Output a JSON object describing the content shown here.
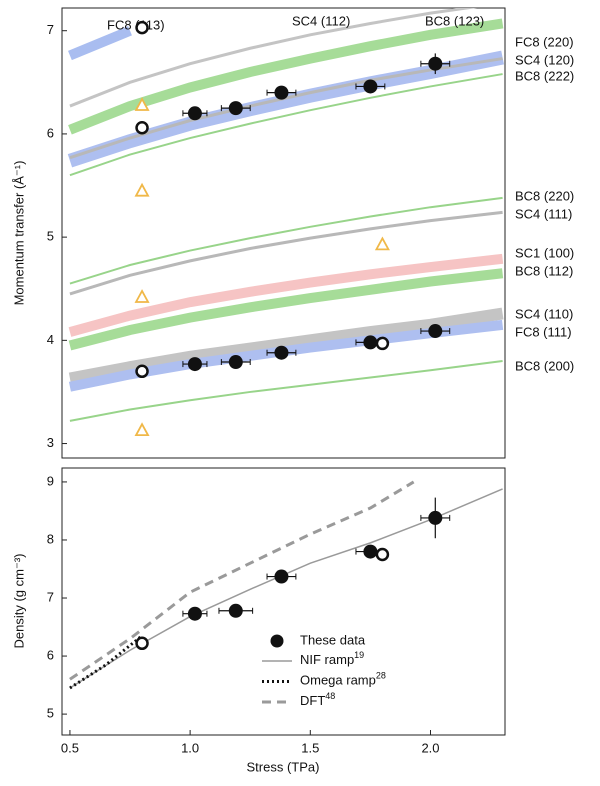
{
  "chart_data": [
    {
      "type": "line",
      "ylabel": "Momentum transfer (Å⁻¹)",
      "xlim": [
        0.467,
        2.31
      ],
      "ylim": [
        2.86,
        7.22
      ],
      "yticks": [
        3,
        4,
        5,
        6,
        7
      ],
      "x": [
        0.5,
        0.75,
        1.0,
        1.25,
        1.5,
        1.75,
        2.0,
        2.3
      ],
      "series": [
        {
          "name": "FC8 (113)",
          "color": "#a9bdf0",
          "values": [
            6.76,
            7.0,
            null,
            null,
            null,
            null,
            null,
            null
          ]
        },
        {
          "name": "SC4 (112)",
          "color": "#c4c4c4",
          "values": [
            6.27,
            6.5,
            6.68,
            6.83,
            6.96,
            7.07,
            7.17,
            7.27
          ]
        },
        {
          "name": "BC8 (123)",
          "color": "#a6dc98",
          "values": [
            6.04,
            6.27,
            6.45,
            6.6,
            6.73,
            6.85,
            6.96,
            7.07
          ]
        },
        {
          "name": "FC8 (220)",
          "color": "#aebff0",
          "values": [
            5.74,
            5.93,
            6.1,
            6.24,
            6.37,
            6.49,
            6.6,
            6.74
          ]
        },
        {
          "name": "SC4 (120)",
          "color": "#b8b8b8",
          "values": [
            5.77,
            5.96,
            6.13,
            6.27,
            6.4,
            6.52,
            6.62,
            6.73
          ]
        },
        {
          "name": "BC8 (222)",
          "color": "#98d48a",
          "values": [
            5.6,
            5.8,
            5.96,
            6.1,
            6.23,
            6.35,
            6.46,
            6.58
          ]
        },
        {
          "name": "BC8 (220)",
          "color": "#98d48a",
          "values": [
            4.55,
            4.73,
            4.87,
            4.99,
            5.1,
            5.2,
            5.29,
            5.38
          ]
        },
        {
          "name": "SC4 (111)",
          "color": "#b8b8b8",
          "values": [
            4.45,
            4.63,
            4.77,
            4.89,
            4.99,
            5.08,
            5.16,
            5.24
          ]
        },
        {
          "name": "SC1 (100)",
          "color": "#f6c4c4",
          "values": [
            4.08,
            4.24,
            4.37,
            4.47,
            4.56,
            4.64,
            4.71,
            4.79
          ]
        },
        {
          "name": "BC8 (112)",
          "color": "#a6dc98",
          "values": [
            3.95,
            4.1,
            4.22,
            4.32,
            4.41,
            4.49,
            4.57,
            4.65
          ]
        },
        {
          "name": "SC4 (110)",
          "color": "#c4c4c4",
          "values": [
            3.63,
            3.74,
            3.84,
            3.92,
            4.0,
            4.08,
            4.15,
            4.26
          ]
        },
        {
          "name": "FC8 (111)",
          "color": "#aebff0",
          "values": [
            3.55,
            3.67,
            3.77,
            3.85,
            3.93,
            4.0,
            4.07,
            4.15
          ]
        },
        {
          "name": "BC8 (200)",
          "color": "#98d48a",
          "values": [
            3.22,
            3.33,
            3.42,
            3.5,
            3.57,
            3.64,
            3.71,
            3.8
          ]
        }
      ],
      "points": [
        {
          "marker": "filled",
          "x": [
            1.02,
            1.19,
            1.38,
            1.75,
            2.02,
            1.02,
            1.19,
            1.38,
            1.75,
            2.02
          ],
          "values": [
            6.2,
            6.25,
            6.4,
            6.46,
            6.68,
            3.77,
            3.79,
            3.88,
            3.98,
            4.09
          ],
          "xerr": [
            0.05,
            0.06,
            0.06,
            0.06,
            0.06,
            0.05,
            0.06,
            0.06,
            0.06,
            0.06
          ],
          "yerr": [
            0.04,
            0.04,
            0.05,
            0.05,
            0.1,
            0.03,
            0.03,
            0.04,
            0.04,
            0.05
          ]
        },
        {
          "marker": "open",
          "x": [
            0.8,
            0.8,
            0.8,
            1.8
          ],
          "values": [
            7.03,
            6.06,
            3.7,
            3.97
          ]
        },
        {
          "marker": "triangle",
          "color": "#f0b848",
          "x": [
            0.8,
            0.8,
            0.8,
            0.8,
            1.8
          ],
          "values": [
            6.28,
            5.45,
            4.42,
            3.13,
            4.93
          ]
        }
      ]
    },
    {
      "type": "line",
      "ylabel": "Density (g cm⁻³)",
      "xlabel": "Stress (TPa)",
      "xlim": [
        0.467,
        2.31
      ],
      "ylim": [
        4.64,
        9.24
      ],
      "yticks": [
        5,
        6,
        7,
        8,
        9
      ],
      "xticks": [
        0.5,
        {
          "value": 1.0,
          "label": "1.0"
        },
        1.5,
        {
          "value": 2.0,
          "label": "2.0"
        }
      ],
      "series": [
        {
          "name": "NIF ramp",
          "ref": "19",
          "color": "#9a9a9a",
          "style": "solid",
          "x": [
            0.5,
            0.75,
            1.0,
            1.25,
            1.5,
            1.75,
            2.0,
            2.3
          ],
          "values": [
            5.45,
            6.1,
            6.68,
            7.15,
            7.6,
            7.95,
            8.35,
            8.88
          ]
        },
        {
          "name": "Omega ramp",
          "ref": "28",
          "color": "#111111",
          "style": "dotted",
          "x": [
            0.5,
            0.65,
            0.8
          ],
          "values": [
            5.45,
            5.85,
            6.35
          ]
        },
        {
          "name": "DFT",
          "ref": "48",
          "color": "#9a9a9a",
          "style": "dashed",
          "x": [
            0.5,
            0.75,
            1.0,
            1.25,
            1.5,
            1.75,
            1.93
          ],
          "values": [
            5.6,
            6.3,
            7.1,
            7.6,
            8.1,
            8.55,
            9.0
          ]
        }
      ],
      "points": [
        {
          "name": "These data",
          "marker": "filled",
          "x": [
            1.02,
            1.19,
            1.38,
            1.75,
            2.02
          ],
          "values": [
            6.73,
            6.78,
            7.37,
            7.8,
            8.38
          ],
          "xerr": [
            0.05,
            0.07,
            0.06,
            0.06,
            0.06
          ],
          "yerr": [
            0.06,
            0.06,
            0.08,
            0.08,
            0.35
          ]
        },
        {
          "marker": "open",
          "x": [
            0.8,
            1.8
          ],
          "values": [
            6.22,
            7.75
          ]
        }
      ]
    }
  ]
}
